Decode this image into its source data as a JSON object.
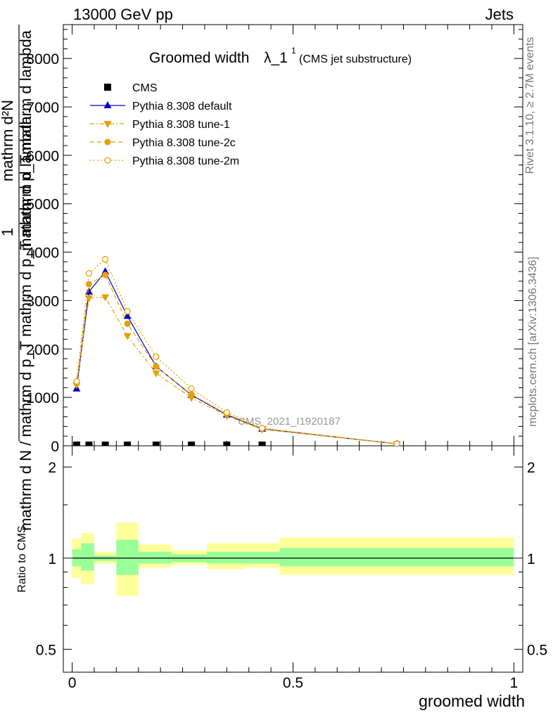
{
  "header": {
    "left": "13000 GeV pp",
    "right": "Jets"
  },
  "side_notes": {
    "rivet": "Rivet 3.1.10, ≥ 2.7M events",
    "mcplots": "mcplots.cern.ch [arXiv:1306.3436]"
  },
  "colors": {
    "default": "#0000cc",
    "tune": "#e5a000",
    "band_inner": "#99ff99",
    "band_outer": "#ffff99"
  },
  "chart_data": [
    {
      "type": "line",
      "title_main": "Groomed width",
      "title_symbol": "λ_1",
      "title_sup": "1",
      "title_sub": "(CMS jet substructure)",
      "ylabel_numerator": "1",
      "ylabel_denominator": "mathrm d N / mathrm d p_T mathrm d p_T mathrm d lambda",
      "ylabel_lines": [
        "mathrm d²N",
        "mathrm d p_T mathrm d lambda"
      ],
      "watermark": "CMS_2021_I1920187",
      "ylim": [
        0,
        8700
      ],
      "xlim": [
        -0.02,
        1.02
      ],
      "yticks": [
        0,
        1000,
        2000,
        3000,
        4000,
        5000,
        6000,
        7000,
        8000
      ],
      "ytick_labels": [
        "0",
        "1000",
        "2000",
        "3000",
        "4000",
        "5000",
        "6000",
        "7000",
        "8000"
      ],
      "legend": [
        {
          "name": "CMS",
          "marker": "square"
        },
        {
          "name": "Pythia 8.308 default",
          "marker": "triangle-up"
        },
        {
          "name": "Pythia 8.308 tune-1",
          "marker": "triangle-down"
        },
        {
          "name": "Pythia 8.308 tune-2c",
          "marker": "circle-filled"
        },
        {
          "name": "Pythia 8.308 tune-2m",
          "marker": "circle-open"
        }
      ],
      "cms_points": {
        "x": [
          0.01,
          0.038,
          0.075,
          0.125,
          0.19,
          0.27,
          0.35,
          0.43
        ],
        "y": [
          0,
          0,
          0,
          0,
          0,
          0,
          0,
          0
        ]
      },
      "series": [
        {
          "name": "Pythia 8.308 default",
          "x": [
            0.01,
            0.038,
            0.075,
            0.125,
            0.19,
            0.27,
            0.35,
            0.43,
            0.735
          ],
          "y": [
            1180,
            3180,
            3600,
            2680,
            1640,
            1050,
            640,
            350,
            40
          ]
        },
        {
          "name": "Pythia 8.308 tune-1",
          "x": [
            0.01,
            0.038,
            0.075,
            0.125,
            0.19,
            0.27,
            0.35,
            0.43,
            0.735
          ],
          "y": [
            1260,
            3050,
            3070,
            2270,
            1500,
            990,
            620,
            340,
            40
          ]
        },
        {
          "name": "Pythia 8.308 tune-2c",
          "x": [
            0.01,
            0.038,
            0.075,
            0.125,
            0.19,
            0.27,
            0.35,
            0.43,
            0.735
          ],
          "y": [
            1290,
            3340,
            3530,
            2520,
            1640,
            1060,
            650,
            355,
            40
          ]
        },
        {
          "name": "Pythia 8.308 tune-2m",
          "x": [
            0.01,
            0.038,
            0.075,
            0.125,
            0.19,
            0.27,
            0.35,
            0.43,
            0.735
          ],
          "y": [
            1330,
            3560,
            3850,
            2780,
            1840,
            1180,
            690,
            365,
            42
          ]
        }
      ]
    },
    {
      "type": "area",
      "ylabel": "Ratio to CMS",
      "ylim": [
        0.42,
        2.35
      ],
      "yticks": [
        0.5,
        1,
        2
      ],
      "ytick_labels": [
        "0.5",
        "1",
        "2"
      ],
      "xticks": [
        0,
        0.5,
        1
      ],
      "xtick_labels": [
        "0",
        "0.5",
        "1"
      ],
      "xlabel": "groomed width",
      "reference_line": 1,
      "bands": [
        {
          "x0": 0.0,
          "x1": 0.02,
          "inner": [
            0.94,
            1.07
          ],
          "outer": [
            0.86,
            1.16
          ]
        },
        {
          "x0": 0.02,
          "x1": 0.05,
          "inner": [
            0.91,
            1.12
          ],
          "outer": [
            0.82,
            1.21
          ]
        },
        {
          "x0": 0.05,
          "x1": 0.1,
          "inner": [
            0.98,
            1.02
          ],
          "outer": [
            0.96,
            1.05
          ]
        },
        {
          "x0": 0.1,
          "x1": 0.15,
          "inner": [
            0.88,
            1.15
          ],
          "outer": [
            0.75,
            1.31
          ]
        },
        {
          "x0": 0.15,
          "x1": 0.225,
          "inner": [
            0.96,
            1.05
          ],
          "outer": [
            0.93,
            1.11
          ]
        },
        {
          "x0": 0.225,
          "x1": 0.305,
          "inner": [
            0.97,
            1.03
          ],
          "outer": [
            0.95,
            1.06
          ]
        },
        {
          "x0": 0.305,
          "x1": 0.39,
          "inner": [
            0.96,
            1.05
          ],
          "outer": [
            0.92,
            1.12
          ]
        },
        {
          "x0": 0.39,
          "x1": 0.47,
          "inner": [
            0.96,
            1.05
          ],
          "outer": [
            0.93,
            1.12
          ]
        },
        {
          "x0": 0.47,
          "x1": 1.0,
          "inner": [
            0.94,
            1.08
          ],
          "outer": [
            0.88,
            1.17
          ]
        }
      ]
    }
  ]
}
